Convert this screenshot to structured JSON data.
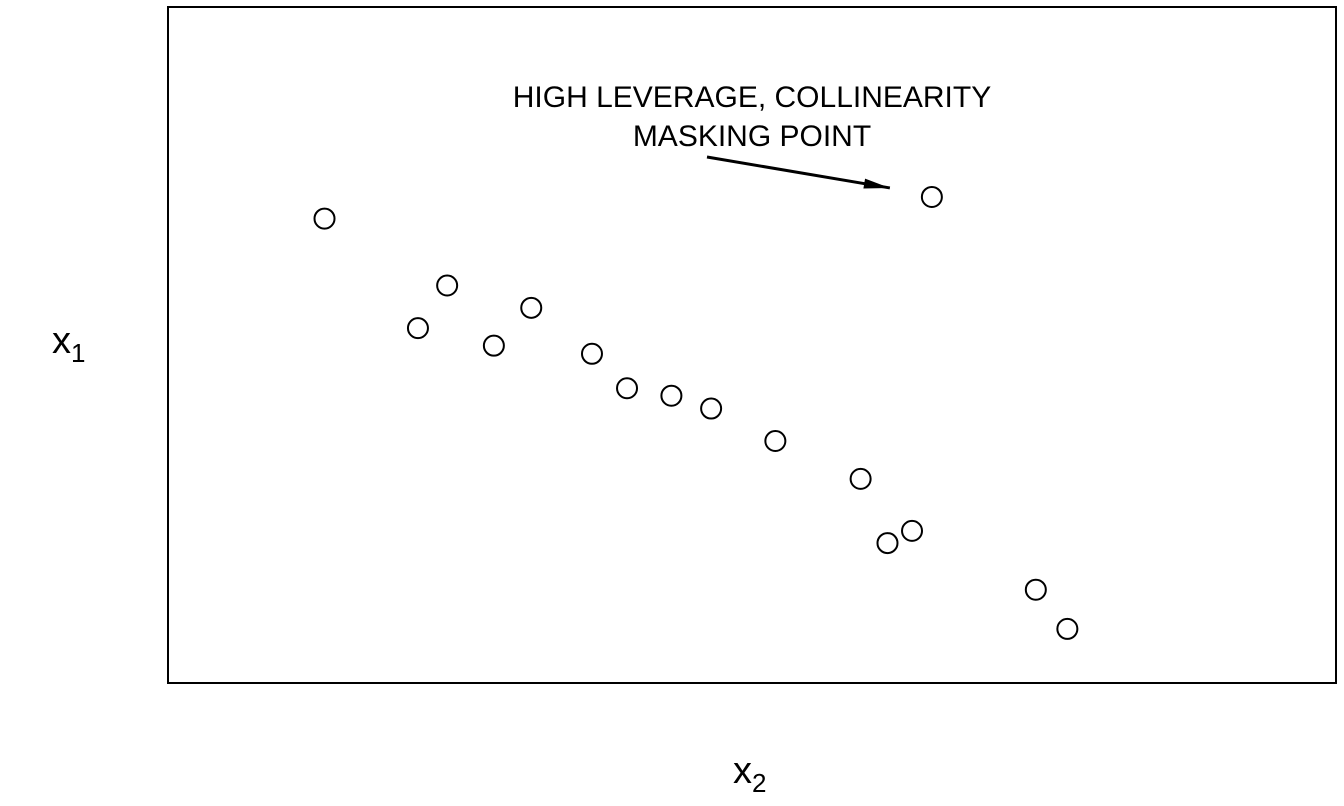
{
  "chart_data": {
    "type": "scatter",
    "title": "",
    "xlabel": {
      "base": "x",
      "sub": "2"
    },
    "ylabel": {
      "base": "x",
      "sub": "1"
    },
    "xlim": [
      0,
      100
    ],
    "ylim": [
      0,
      100
    ],
    "ticks_shown": false,
    "grid": false,
    "legend": "none",
    "marker": "open-circle",
    "marker_color": "#000000",
    "points": [
      {
        "x": 13.4,
        "y": 68.7
      },
      {
        "x": 21.4,
        "y": 52.5
      },
      {
        "x": 23.9,
        "y": 58.8
      },
      {
        "x": 27.9,
        "y": 49.9
      },
      {
        "x": 31.1,
        "y": 55.5
      },
      {
        "x": 36.3,
        "y": 48.7
      },
      {
        "x": 39.3,
        "y": 43.6
      },
      {
        "x": 43.1,
        "y": 42.5
      },
      {
        "x": 46.5,
        "y": 40.6
      },
      {
        "x": 52.0,
        "y": 35.8
      },
      {
        "x": 59.3,
        "y": 30.2
      },
      {
        "x": 61.6,
        "y": 20.7
      },
      {
        "x": 63.7,
        "y": 22.5
      },
      {
        "x": 65.4,
        "y": 71.9
      },
      {
        "x": 74.3,
        "y": 13.8
      },
      {
        "x": 77.0,
        "y": 8.0
      }
    ],
    "annotation": {
      "lines": [
        "HIGH LEVERAGE, COLLINEARITY",
        "MASKING POINT"
      ],
      "target_x": 65.4,
      "target_y": 71.9
    }
  }
}
